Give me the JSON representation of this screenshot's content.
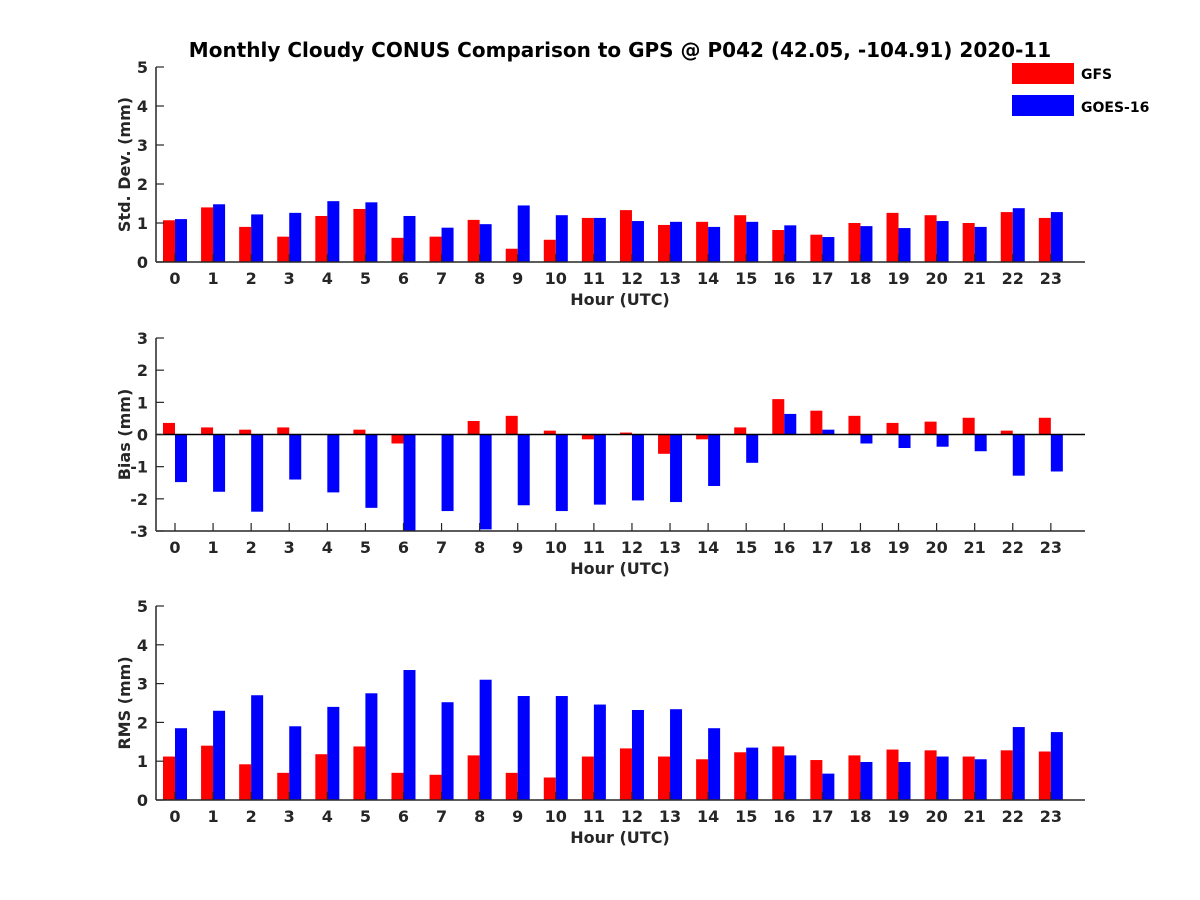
{
  "figure": {
    "title": "Monthly Cloudy CONUS Comparison to GPS @ P042 (42.05, -104.91) 2020-11"
  },
  "legend": {
    "placement": "top-right",
    "items": [
      {
        "label": "GFS",
        "color": "#ff0000"
      },
      {
        "label": "GOES-16",
        "color": "#0000ff"
      }
    ]
  },
  "chart_data": [
    {
      "type": "bar",
      "ylabel": "Std. Dev. (mm)",
      "xlabel": "Hour (UTC)",
      "ylim": [
        0,
        5
      ],
      "yticks": [
        0,
        1,
        2,
        3,
        4,
        5
      ],
      "categories": [
        "0",
        "1",
        "2",
        "3",
        "4",
        "5",
        "6",
        "7",
        "8",
        "9",
        "10",
        "11",
        "12",
        "13",
        "14",
        "15",
        "16",
        "17",
        "18",
        "19",
        "20",
        "21",
        "22",
        "23"
      ],
      "series": [
        {
          "name": "GFS",
          "color": "#ff0000",
          "values": [
            1.07,
            1.4,
            0.9,
            0.65,
            1.18,
            1.36,
            0.62,
            0.65,
            1.08,
            0.34,
            0.57,
            1.13,
            1.33,
            0.95,
            1.03,
            1.2,
            0.82,
            0.7,
            1.0,
            1.26,
            1.2,
            1.0,
            1.28,
            1.13
          ]
        },
        {
          "name": "GOES-16",
          "color": "#0000ff",
          "values": [
            1.1,
            1.48,
            1.22,
            1.26,
            1.56,
            1.53,
            1.18,
            0.88,
            0.97,
            1.45,
            1.2,
            1.13,
            1.05,
            1.03,
            0.9,
            1.03,
            0.94,
            0.64,
            0.92,
            0.87,
            1.05,
            0.9,
            1.38,
            1.28
          ]
        }
      ]
    },
    {
      "type": "bar",
      "ylabel": "Bias (mm)",
      "xlabel": "Hour (UTC)",
      "ylim": [
        -3,
        3
      ],
      "yticks": [
        -3,
        -2,
        -1,
        0,
        1,
        2,
        3
      ],
      "categories": [
        "0",
        "1",
        "2",
        "3",
        "4",
        "5",
        "6",
        "7",
        "8",
        "9",
        "10",
        "11",
        "12",
        "13",
        "14",
        "15",
        "16",
        "17",
        "18",
        "19",
        "20",
        "21",
        "22",
        "23"
      ],
      "series": [
        {
          "name": "GFS",
          "color": "#ff0000",
          "values": [
            0.36,
            0.22,
            0.15,
            0.22,
            0.0,
            0.15,
            -0.28,
            0.0,
            0.42,
            0.58,
            0.12,
            -0.15,
            0.06,
            -0.6,
            -0.15,
            0.22,
            1.1,
            0.74,
            0.58,
            0.36,
            0.4,
            0.52,
            0.12,
            0.52
          ]
        },
        {
          "name": "GOES-16",
          "color": "#0000ff",
          "values": [
            -1.48,
            -1.78,
            -2.4,
            -1.4,
            -1.8,
            -2.28,
            -3.0,
            -2.38,
            -2.95,
            -2.2,
            -2.38,
            -2.18,
            -2.05,
            -2.1,
            -1.6,
            -0.88,
            0.64,
            0.15,
            -0.28,
            -0.42,
            -0.38,
            -0.52,
            -1.28,
            -1.15
          ]
        }
      ]
    },
    {
      "type": "bar",
      "ylabel": "RMS (mm)",
      "xlabel": "Hour (UTC)",
      "ylim": [
        0,
        5
      ],
      "yticks": [
        0,
        1,
        2,
        3,
        4,
        5
      ],
      "categories": [
        "0",
        "1",
        "2",
        "3",
        "4",
        "5",
        "6",
        "7",
        "8",
        "9",
        "10",
        "11",
        "12",
        "13",
        "14",
        "15",
        "16",
        "17",
        "18",
        "19",
        "20",
        "21",
        "22",
        "23"
      ],
      "series": [
        {
          "name": "GFS",
          "color": "#ff0000",
          "values": [
            1.12,
            1.4,
            0.92,
            0.7,
            1.18,
            1.38,
            0.7,
            0.65,
            1.15,
            0.7,
            0.58,
            1.12,
            1.33,
            1.12,
            1.05,
            1.23,
            1.38,
            1.03,
            1.15,
            1.3,
            1.28,
            1.12,
            1.28,
            1.25
          ]
        },
        {
          "name": "GOES-16",
          "color": "#0000ff",
          "values": [
            1.85,
            2.3,
            2.7,
            1.9,
            2.4,
            2.75,
            3.35,
            2.52,
            3.1,
            2.68,
            2.68,
            2.46,
            2.32,
            2.34,
            1.85,
            1.35,
            1.15,
            0.68,
            0.98,
            0.98,
            1.12,
            1.05,
            1.88,
            1.75
          ]
        }
      ]
    }
  ]
}
